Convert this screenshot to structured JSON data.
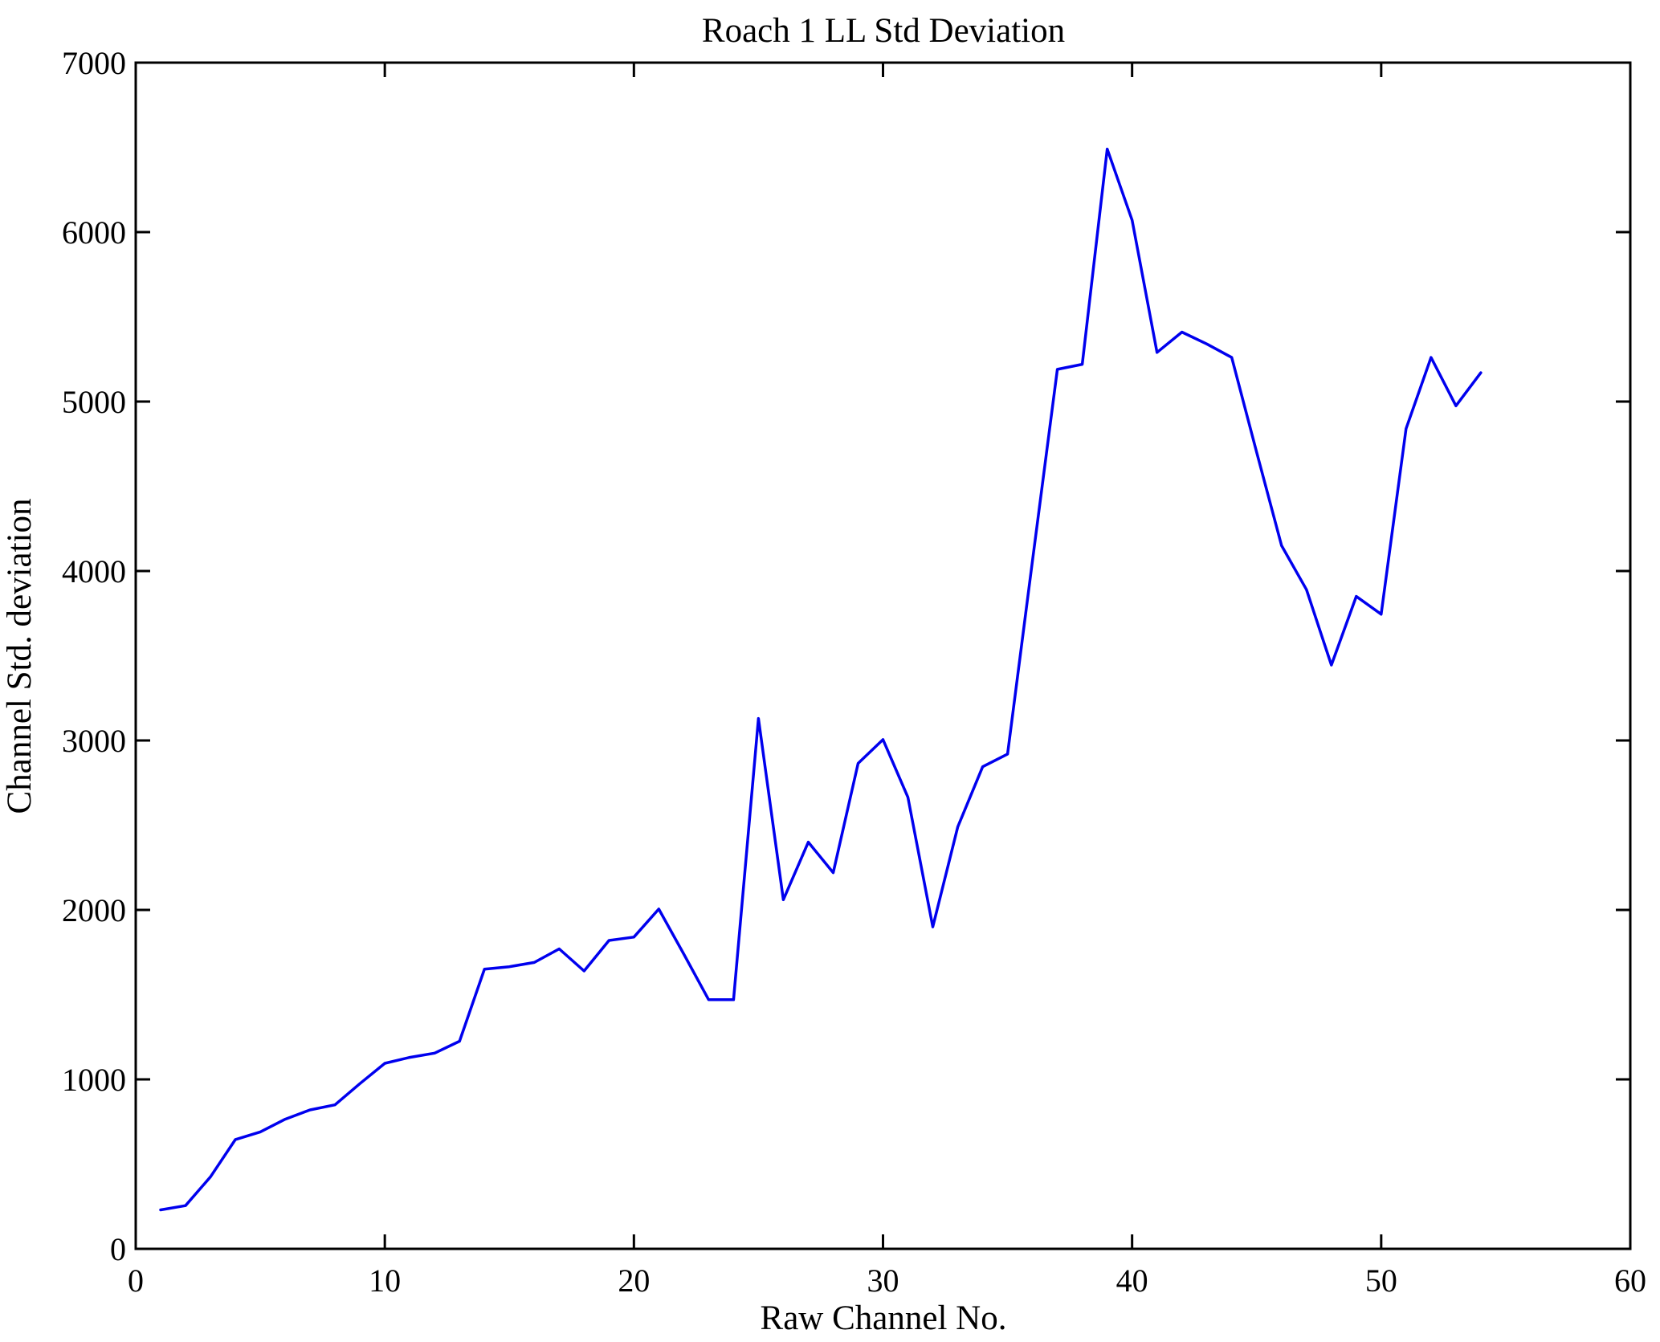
{
  "title": "Roach 1 LL Std Deviation",
  "chart_data": {
    "type": "line",
    "title": "Roach 1 LL Std Deviation",
    "xlabel": "Raw Channel No.",
    "ylabel": "Channel Std. deviation",
    "xlim": [
      0,
      60
    ],
    "ylim": [
      0,
      7000
    ],
    "x_ticks": [
      0,
      10,
      20,
      30,
      40,
      50,
      60
    ],
    "y_ticks": [
      0,
      1000,
      2000,
      3000,
      4000,
      5000,
      6000,
      7000
    ],
    "grid": false,
    "legend": "none",
    "line_color": "#0000EE",
    "series": [
      {
        "name": "Channel Std. deviation",
        "x": [
          1,
          2,
          3,
          4,
          5,
          6,
          7,
          8,
          9,
          10,
          11,
          12,
          13,
          14,
          15,
          16,
          17,
          18,
          19,
          20,
          21,
          22,
          23,
          24,
          25,
          26,
          27,
          28,
          29,
          30,
          31,
          32,
          33,
          34,
          35,
          36,
          37,
          38,
          39,
          40,
          41,
          42,
          43,
          44,
          45,
          46,
          47,
          48,
          49,
          50,
          51,
          52,
          53,
          54
        ],
        "y": [
          230,
          255,
          425,
          645,
          690,
          765,
          820,
          850,
          975,
          1095,
          1130,
          1155,
          1225,
          1650,
          1665,
          1690,
          1770,
          1640,
          1820,
          1840,
          2005,
          1740,
          1470,
          1470,
          3130,
          2060,
          2400,
          2220,
          2865,
          3005,
          2665,
          1900,
          2490,
          2845,
          2920,
          4060,
          5190,
          5220,
          6490,
          6070,
          5290,
          5410,
          5340,
          5260,
          4700,
          4150,
          3890,
          3445,
          3850,
          3745,
          4840,
          5260,
          4975,
          5170
        ]
      }
    ]
  }
}
